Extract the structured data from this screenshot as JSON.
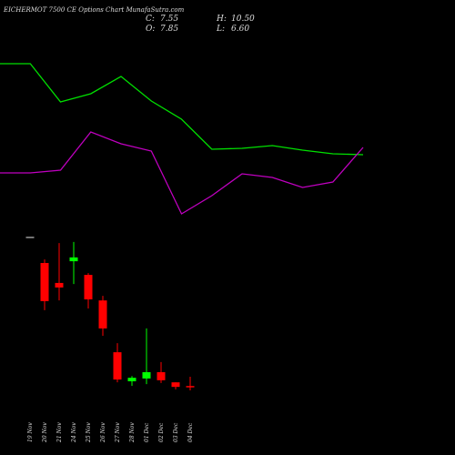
{
  "chart_data": [
    {
      "type": "line",
      "ylim": [
        0,
        200
      ],
      "series": [
        {
          "name": null,
          "color": "#00e000",
          "values": [
            180,
            180,
            138,
            147,
            166,
            139,
            119,
            86,
            87,
            90,
            85,
            81,
            80
          ]
        },
        {
          "name": null,
          "color": "#c000c0",
          "values": [
            60,
            60,
            63,
            105,
            92,
            84,
            15,
            35,
            59,
            55,
            44,
            50,
            88
          ]
        }
      ]
    },
    {
      "type": "candlestick",
      "title": "EICHERMOT 7500 CE Options Chart MunafaSutra.com",
      "summary": [
        {
          "label": "C:",
          "value": 7.55
        },
        {
          "label": "H:",
          "value": 10.5
        },
        {
          "label": "O:",
          "value": 7.85
        },
        {
          "label": "L:",
          "value": 6.6
        }
      ],
      "summary_labels": [
        "7.55",
        "10.50",
        "7.85",
        "6.60"
      ],
      "categories": [
        "19 Nov",
        "20 Nov",
        "21 Nov",
        "24 Nov",
        "25 Nov",
        "26 Nov",
        "27 Nov",
        "28 Nov",
        "01 Dec",
        "02 Dec",
        "03 Dec",
        "04 Dec"
      ],
      "open": [
        50.5,
        43.0,
        37.3,
        43.5,
        39.6,
        32.3,
        17.5,
        9.2,
        10.0,
        11.8,
        8.9,
        7.85
      ],
      "high": [
        50.5,
        44.0,
        48.7,
        49.0,
        40.1,
        33.6,
        20.1,
        10.7,
        24.3,
        14.7,
        8.9,
        10.5
      ],
      "low": [
        50.5,
        29.5,
        32.3,
        37.0,
        30.0,
        22.2,
        8.9,
        7.9,
        8.4,
        8.7,
        6.9,
        6.6
      ],
      "close": [
        50.5,
        32.1,
        36.0,
        44.6,
        32.6,
        24.3,
        9.7,
        10.2,
        11.8,
        9.5,
        7.6,
        7.55
      ],
      "ylim": [
        3.74,
        53.14
      ],
      "up_color": "#00ff00",
      "down_color": "#ff0000",
      "flat_color": "#999999"
    }
  ]
}
